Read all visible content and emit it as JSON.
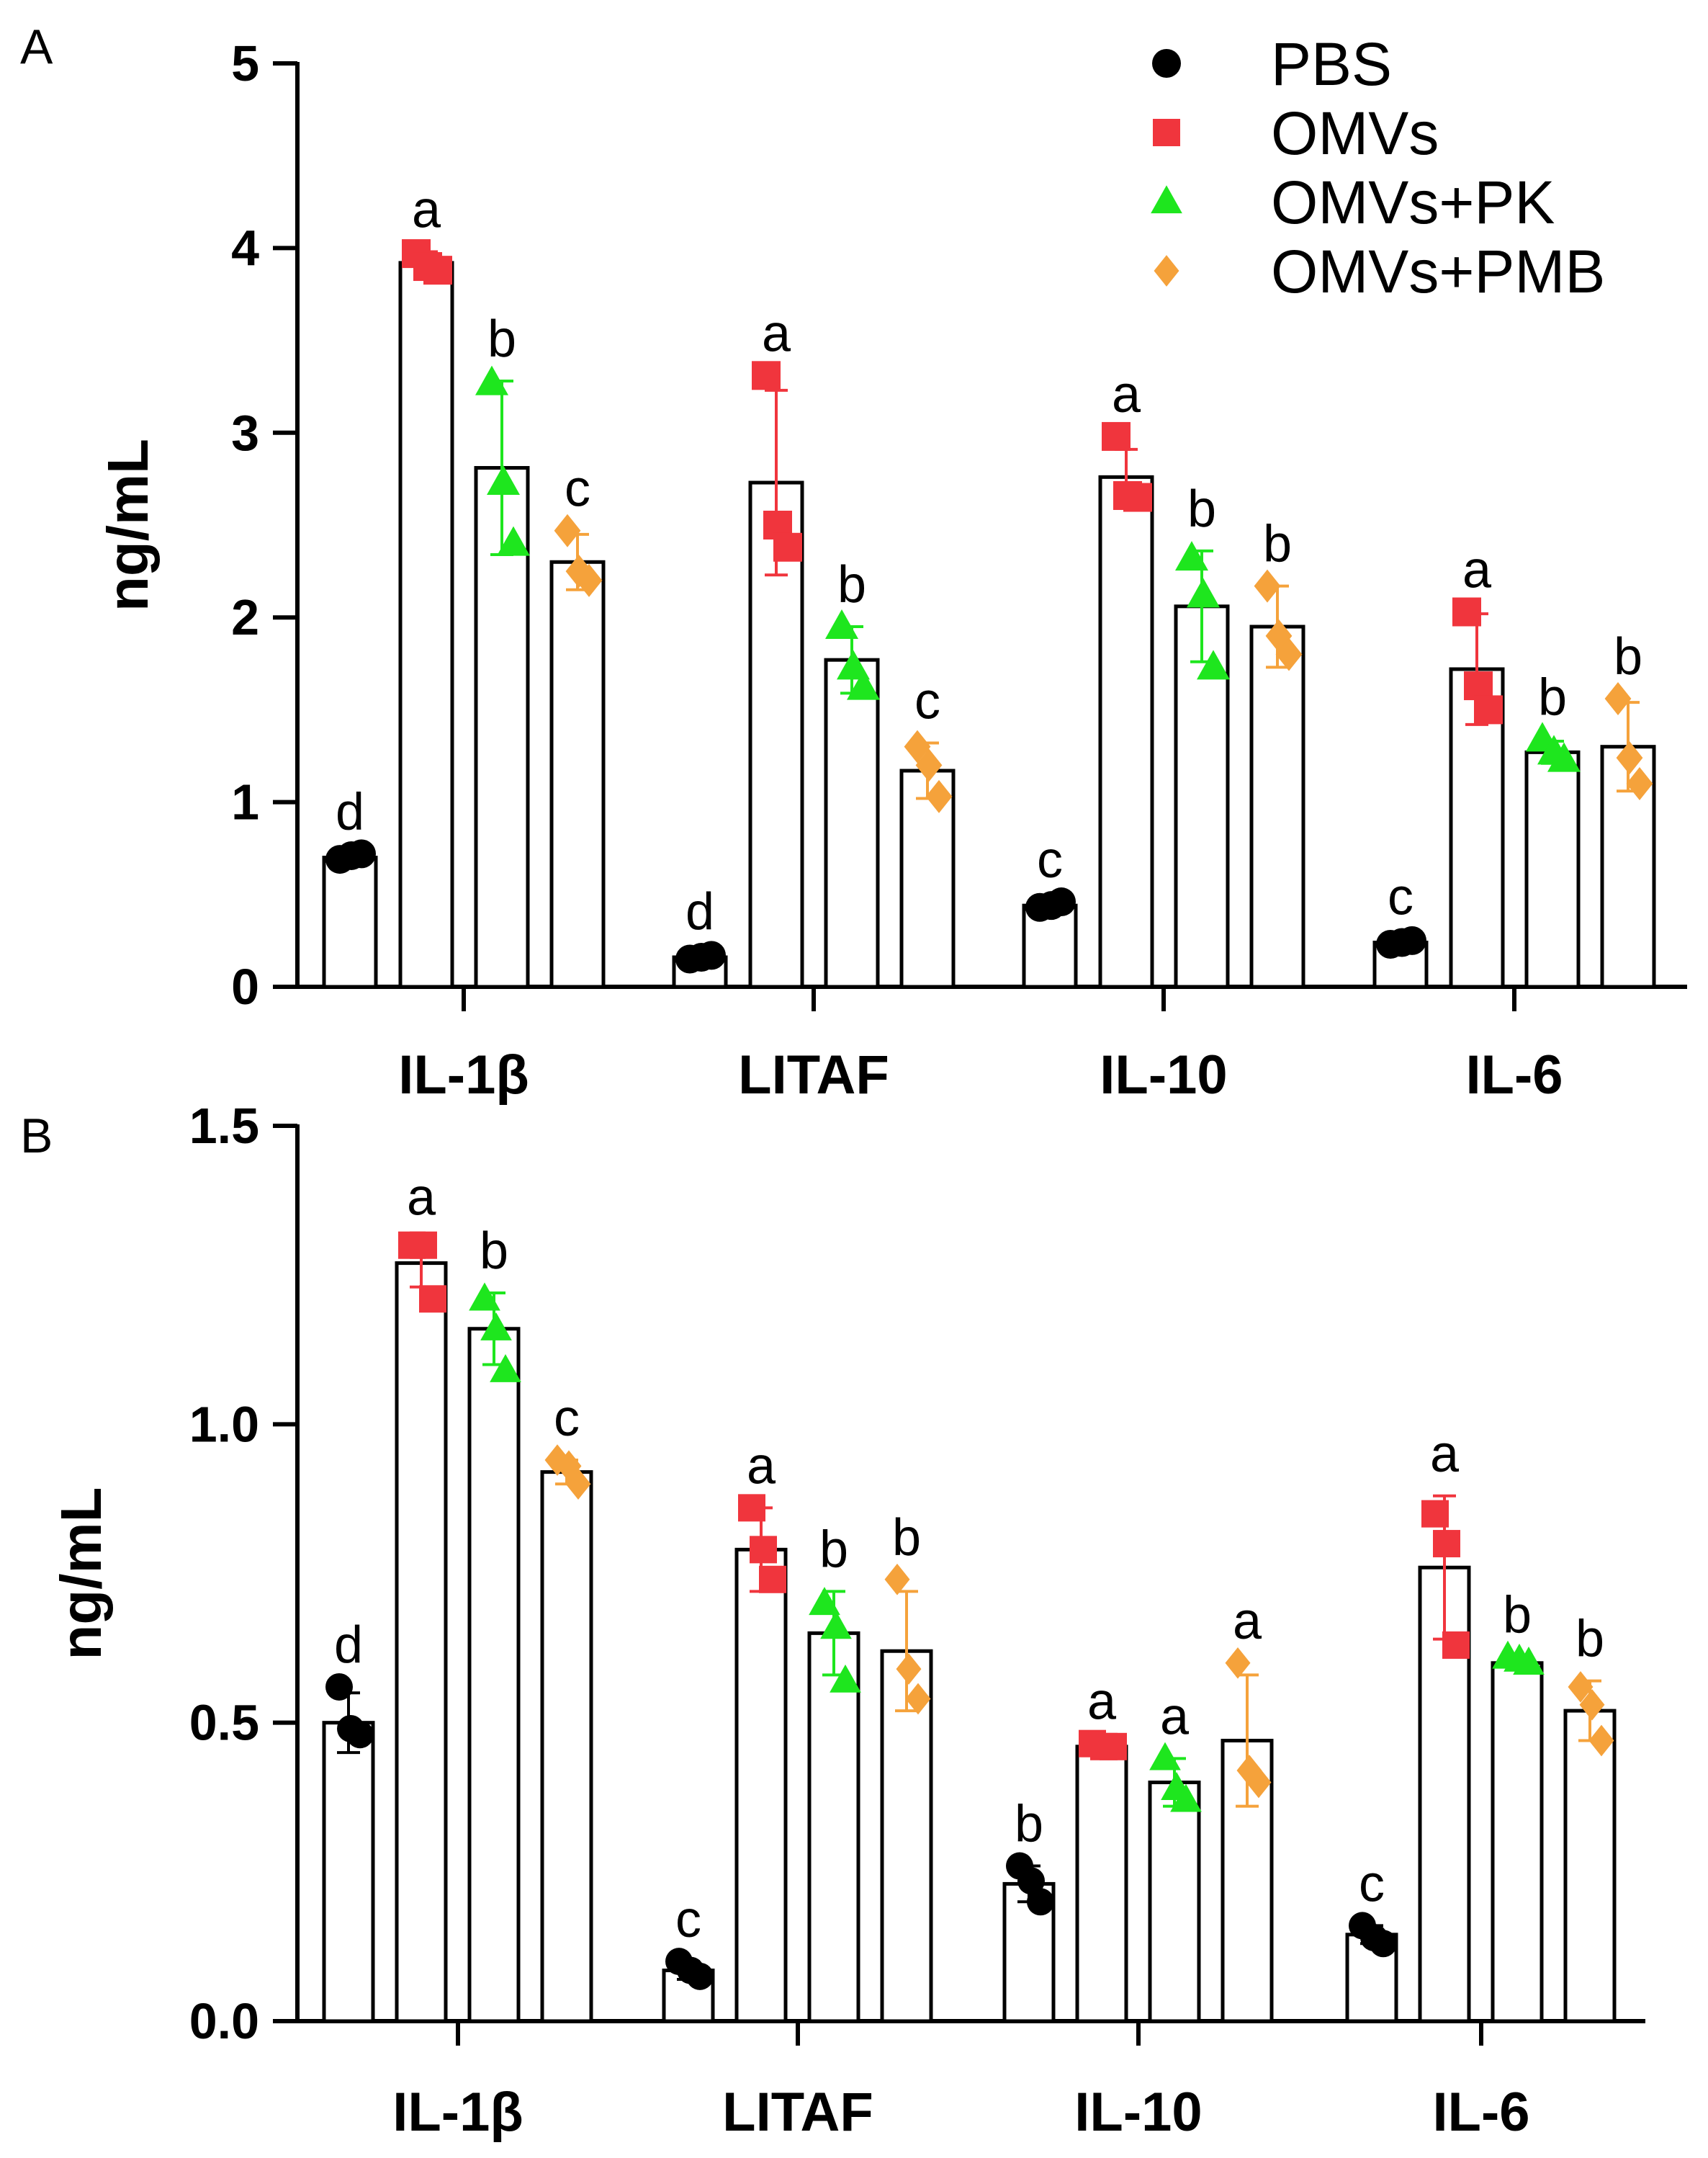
{
  "legend": [
    {
      "name": "PBS",
      "color": "#000000",
      "marker": "circle"
    },
    {
      "name": "OMVs",
      "color": "#f0353d",
      "marker": "square"
    },
    {
      "name": "OMVs+PK",
      "color": "#1ee61e",
      "marker": "triangle"
    },
    {
      "name": "OMVs+PMB",
      "color": "#f5a23b",
      "marker": "diamond"
    }
  ],
  "chart_data": [
    {
      "panel": "A",
      "type": "bar",
      "title": "",
      "ylabel": "ng/mL",
      "xlabel": "",
      "ylim": [
        0,
        5
      ],
      "yticks": [
        "0",
        "1",
        "2",
        "3",
        "4",
        "5"
      ],
      "categories": [
        "IL-1β",
        "LITAF",
        "IL-10",
        "IL-6"
      ],
      "series": [
        {
          "name": "PBS",
          "values": [
            0.7,
            0.16,
            0.44,
            0.24
          ],
          "errors": [
            0.02,
            0.02,
            0.02,
            0.02
          ],
          "points": [
            [
              0.69,
              0.71,
              0.72
            ],
            [
              0.15,
              0.16,
              0.17
            ],
            [
              0.43,
              0.44,
              0.46
            ],
            [
              0.23,
              0.24,
              0.25
            ]
          ],
          "letters": [
            "d",
            "d",
            "c",
            "c"
          ]
        },
        {
          "name": "OMVs",
          "values": [
            3.92,
            2.73,
            2.76,
            1.72
          ],
          "errors": [
            0.06,
            0.5,
            0.15,
            0.3
          ],
          "points": [
            [
              3.97,
              3.9,
              3.88
            ],
            [
              3.31,
              2.5,
              2.38
            ],
            [
              2.98,
              2.66,
              2.65
            ],
            [
              2.03,
              1.63,
              1.5
            ]
          ],
          "letters": [
            "a",
            "a",
            "a",
            "a"
          ]
        },
        {
          "name": "OMVs+PK",
          "values": [
            2.81,
            1.77,
            2.06,
            1.27
          ],
          "errors": [
            0.47,
            0.18,
            0.3,
            0.06
          ],
          "points": [
            [
              3.27,
              2.73,
              2.4
            ],
            [
              1.95,
              1.73,
              1.62
            ],
            [
              2.32,
              2.12,
              1.73
            ],
            [
              1.34,
              1.27,
              1.23
            ]
          ],
          "letters": [
            "b",
            "b",
            "b",
            "b"
          ]
        },
        {
          "name": "OMVs+PMB",
          "values": [
            2.3,
            1.17,
            1.95,
            1.3
          ],
          "errors": [
            0.15,
            0.15,
            0.22,
            0.24
          ],
          "points": [
            [
              2.47,
              2.25,
              2.2
            ],
            [
              1.3,
              1.2,
              1.03
            ],
            [
              2.17,
              1.9,
              1.8
            ],
            [
              1.56,
              1.24,
              1.1
            ]
          ],
          "letters": [
            "c",
            "c",
            "b",
            "b"
          ]
        }
      ]
    },
    {
      "panel": "B",
      "type": "bar",
      "title": "",
      "ylabel": "ng/mL",
      "xlabel": "",
      "ylim": [
        0,
        1.5
      ],
      "yticks": [
        "0.0",
        "0.5",
        "1.0",
        "1.5"
      ],
      "categories": [
        "IL-1β",
        "LITAF",
        "IL-10",
        "IL-6"
      ],
      "series": [
        {
          "name": "PBS",
          "values": [
            0.5,
            0.085,
            0.23,
            0.145
          ],
          "errors": [
            0.05,
            0.015,
            0.03,
            0.015
          ],
          "points": [
            [
              0.56,
              0.49,
              0.48
            ],
            [
              0.1,
              0.085,
              0.075
            ],
            [
              0.26,
              0.235,
              0.2
            ],
            [
              0.16,
              0.14,
              0.13
            ]
          ],
          "letters": [
            "d",
            "c",
            "b",
            "c"
          ]
        },
        {
          "name": "OMVs",
          "values": [
            1.27,
            0.79,
            0.46,
            0.76
          ],
          "errors": [
            0.04,
            0.07,
            0.005,
            0.12
          ],
          "points": [
            [
              1.3,
              1.3,
              1.21
            ],
            [
              0.86,
              0.79,
              0.74
            ],
            [
              0.465,
              0.46,
              0.46
            ],
            [
              0.85,
              0.8,
              0.63
            ]
          ],
          "letters": [
            "a",
            "a",
            "a",
            "a"
          ]
        },
        {
          "name": "OMVs+PK",
          "values": [
            1.16,
            0.65,
            0.4,
            0.6
          ],
          "errors": [
            0.06,
            0.07,
            0.04,
            0.01
          ],
          "points": [
            [
              1.21,
              1.16,
              1.09
            ],
            [
              0.7,
              0.66,
              0.57
            ],
            [
              0.44,
              0.39,
              0.37
            ],
            [
              0.61,
              0.605,
              0.6
            ]
          ],
          "letters": [
            "b",
            "b",
            "a",
            "b"
          ]
        },
        {
          "name": "OMVs+PMB",
          "values": [
            0.92,
            0.62,
            0.47,
            0.52
          ],
          "errors": [
            0.02,
            0.1,
            0.11,
            0.05
          ],
          "points": [
            [
              0.94,
              0.93,
              0.9
            ],
            [
              0.74,
              0.59,
              0.54
            ],
            [
              0.6,
              0.42,
              0.4
            ],
            [
              0.56,
              0.53,
              0.47
            ]
          ],
          "letters": [
            "c",
            "b",
            "a",
            "b"
          ]
        }
      ]
    }
  ]
}
